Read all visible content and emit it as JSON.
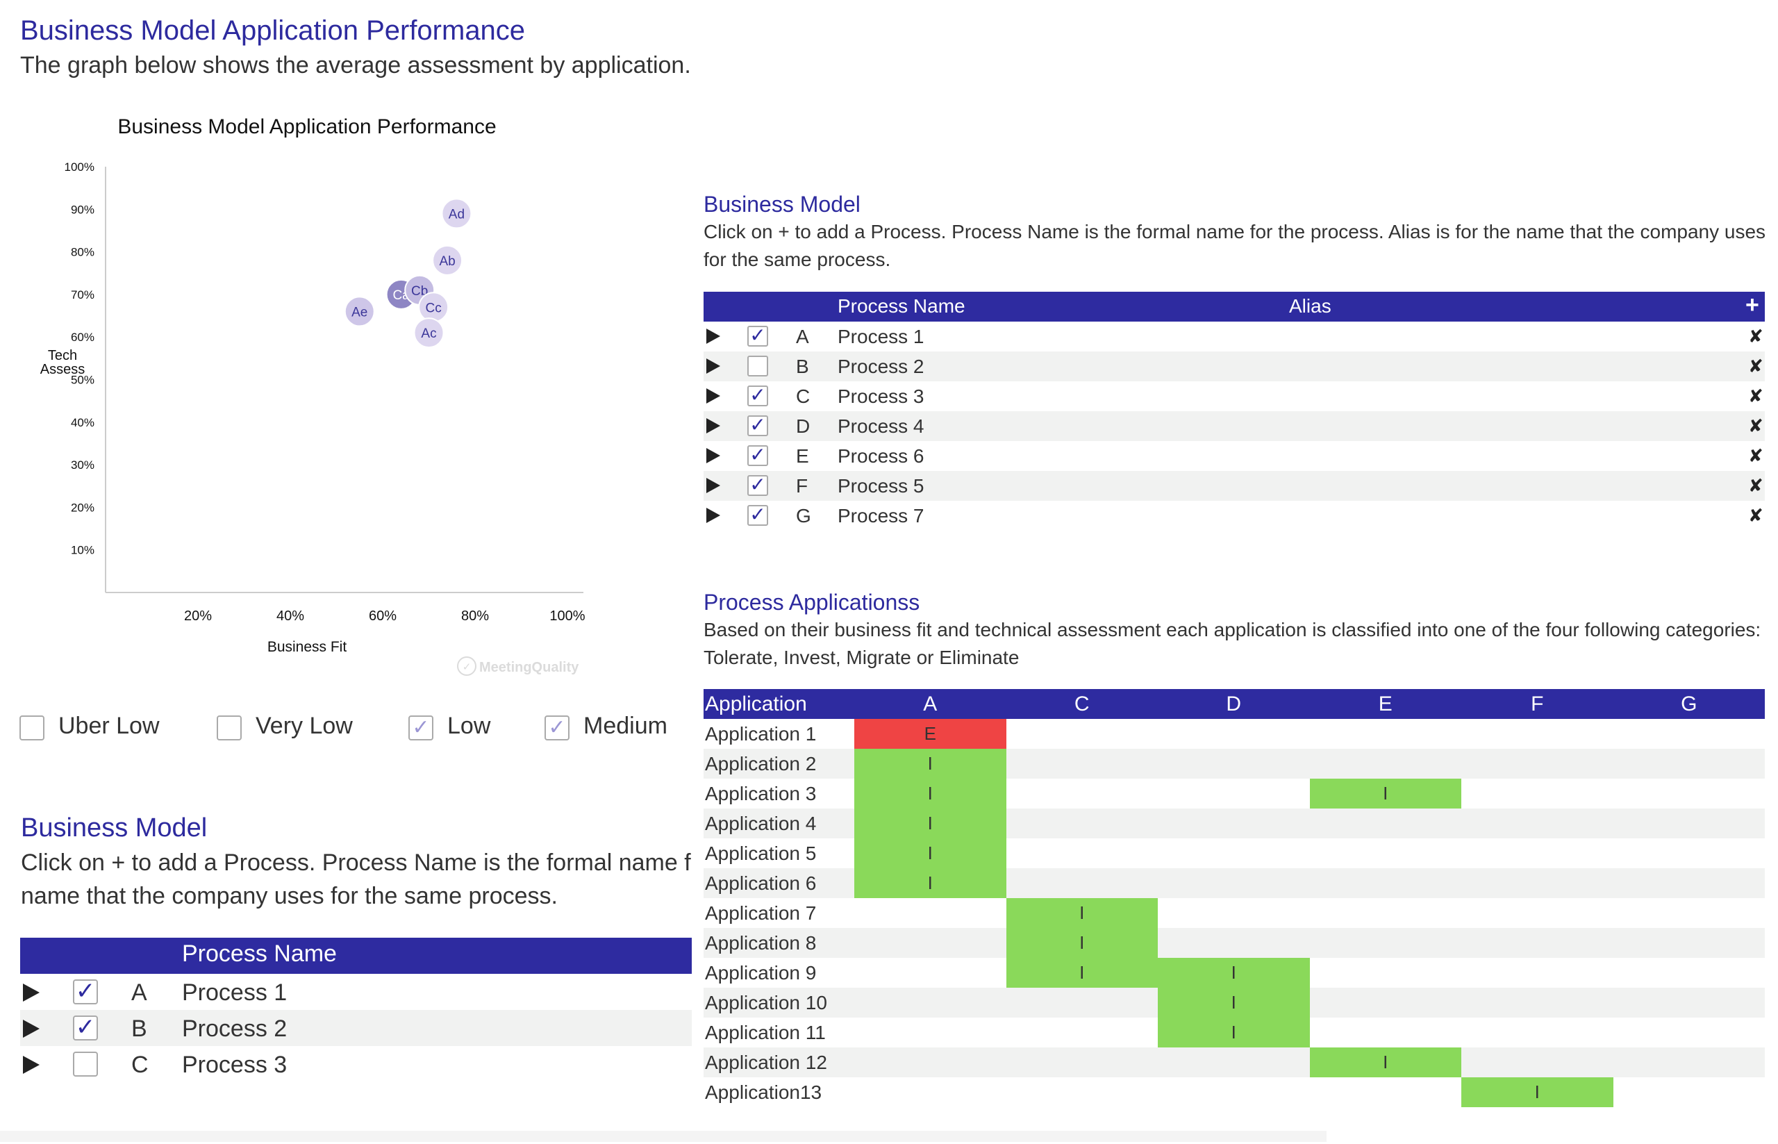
{
  "header": {
    "title": "Business Model Application Performance",
    "subtitle": "The graph below shows the average assessment by application."
  },
  "chart_data": {
    "type": "scatter",
    "title": "Business Model Application Performance",
    "xlabel": "Business Fit",
    "ylabel": "Tech Assess",
    "xlim": [
      0,
      100
    ],
    "ylim": [
      0,
      100
    ],
    "x_ticks": [
      "20%",
      "40%",
      "60%",
      "80%",
      "100%"
    ],
    "y_ticks": [
      "100%",
      "90%",
      "80%",
      "70%",
      "60%",
      "50%",
      "40%",
      "30%",
      "20%",
      "10%"
    ],
    "grid": false,
    "watermark": "MeetingQuality",
    "points": [
      {
        "label": "Ad",
        "x": 76,
        "y": 89,
        "color": "#ddd6ef"
      },
      {
        "label": "Ab",
        "x": 74,
        "y": 78,
        "color": "#ddd6ef"
      },
      {
        "label": "Ca",
        "x": 64,
        "y": 70,
        "color": "#8e86c4"
      },
      {
        "label": "Cb",
        "x": 68,
        "y": 71,
        "color": "#c4bce2"
      },
      {
        "label": "Cc",
        "x": 71,
        "y": 67,
        "color": "#ddd6ef"
      },
      {
        "label": "Ae",
        "x": 55,
        "y": 66,
        "color": "#cec6e8"
      },
      {
        "label": "Ac",
        "x": 70,
        "y": 61,
        "color": "#ddd6ef"
      }
    ]
  },
  "legend": [
    {
      "label": "Uber Low",
      "checked": false
    },
    {
      "label": "Very Low",
      "checked": false
    },
    {
      "label": "Low",
      "checked": true
    },
    {
      "label": "Medium",
      "checked": true
    }
  ],
  "business_model_right": {
    "title": "Business Model",
    "description": "Click on + to add a Process. Process Name is the formal name for the process. Alias is for the name that the company uses for the same process.",
    "columns": {
      "name": "Process Name",
      "alias": "Alias",
      "add": "+"
    },
    "rows": [
      {
        "letter": "A",
        "name": "Process 1",
        "checked": true
      },
      {
        "letter": "B",
        "name": "Process 2",
        "checked": false
      },
      {
        "letter": "C",
        "name": "Process 3",
        "checked": true
      },
      {
        "letter": "D",
        "name": "Process 4",
        "checked": true
      },
      {
        "letter": "E",
        "name": "Process 6",
        "checked": true
      },
      {
        "letter": "F",
        "name": "Process 5",
        "checked": true
      },
      {
        "letter": "G",
        "name": "Process 7",
        "checked": true
      }
    ],
    "check_glyph": "✓",
    "delete_glyph": "✘"
  },
  "business_model_left": {
    "title": "Business Model",
    "description": "Click on + to add a Process. Process Name is the formal name for the process. Alias is for the name that the company uses for the same process.",
    "columns": {
      "name": "Process Name"
    },
    "rows": [
      {
        "letter": "A",
        "name": "Process 1",
        "checked": true
      },
      {
        "letter": "B",
        "name": "Process 2",
        "checked": true
      },
      {
        "letter": "C",
        "name": "Process 3",
        "checked": false
      }
    ]
  },
  "process_applications": {
    "title": "Process Applicationss",
    "description": "Based on their business fit and technical assessment each application is classified into one of the four following categories: Tolerate, Invest, Migrate or Eliminate",
    "header_label": "Application",
    "columns": [
      "A",
      "C",
      "D",
      "E",
      "F",
      "G"
    ],
    "colors": {
      "I": "#8ad95a",
      "E": "#ef4444"
    },
    "rows": [
      {
        "name": "Application 1",
        "cells": {
          "A": "E"
        }
      },
      {
        "name": "Application 2",
        "cells": {
          "A": "I"
        }
      },
      {
        "name": "Application 3",
        "cells": {
          "A": "I",
          "E": "I"
        }
      },
      {
        "name": "Application 4",
        "cells": {
          "A": "I"
        }
      },
      {
        "name": "Application 5",
        "cells": {
          "A": "I"
        }
      },
      {
        "name": "Application 6",
        "cells": {
          "A": "I"
        }
      },
      {
        "name": "Application 7",
        "cells": {
          "C": "I"
        }
      },
      {
        "name": "Application 8",
        "cells": {
          "C": "I"
        }
      },
      {
        "name": "Application 9",
        "cells": {
          "C": "I",
          "D": "I"
        }
      },
      {
        "name": "Application 10",
        "cells": {
          "D": "I"
        }
      },
      {
        "name": "Application 11",
        "cells": {
          "D": "I"
        }
      },
      {
        "name": "Application 12",
        "cells": {
          "E": "I"
        }
      },
      {
        "name": "Application13",
        "cells": {
          "F": "I"
        }
      }
    ]
  }
}
